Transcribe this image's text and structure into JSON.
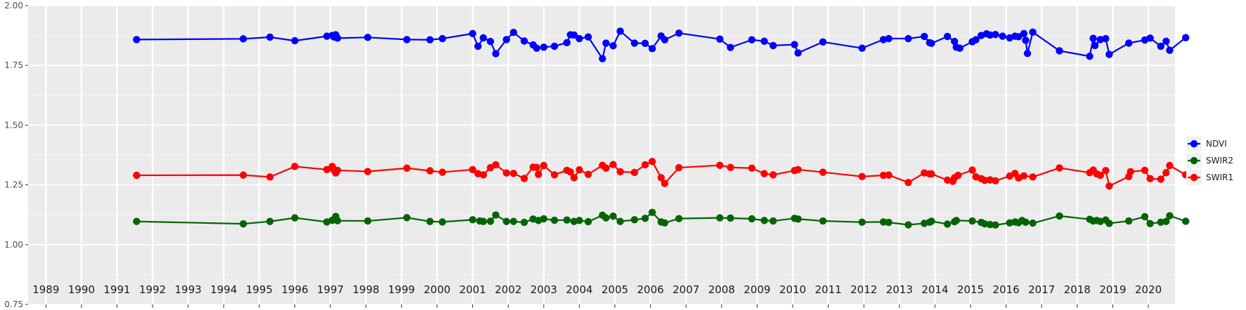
{
  "chart_data": {
    "type": "line",
    "title": "",
    "xlabel": "",
    "ylabel": "",
    "xlim": [
      1988.5,
      2020.75
    ],
    "ylim": [
      0.75,
      2.0
    ],
    "y_ticks": [
      "0.75",
      "1.00",
      "1.25",
      "1.50",
      "1.75",
      "2.00"
    ],
    "y_tick_values": [
      0.75,
      1.0,
      1.25,
      1.5,
      1.75,
      2.0
    ],
    "year_labels": [
      "1989",
      "1990",
      "1991",
      "1992",
      "1993",
      "1994",
      "1995",
      "1996",
      "1997",
      "1998",
      "1999",
      "2000",
      "2001",
      "2002",
      "2003",
      "2004",
      "2005",
      "2006",
      "2007",
      "2008",
      "2009",
      "2010",
      "2011",
      "2012",
      "2013",
      "2014",
      "2015",
      "2016",
      "2017",
      "2018",
      "2019",
      "2020"
    ],
    "year_label_values": [
      1989,
      1990,
      1991,
      1992,
      1993,
      1994,
      1995,
      1996,
      1997,
      1998,
      1999,
      2000,
      2001,
      2002,
      2003,
      2004,
      2005,
      2006,
      2007,
      2008,
      2009,
      2010,
      2011,
      2012,
      2013,
      2014,
      2015,
      2016,
      2017,
      2018,
      2019,
      2020
    ],
    "grid": true,
    "legend_position": "right",
    "background": "#ebebeb",
    "series": [
      {
        "name": "NDVI",
        "color": "#0000ff",
        "points": [
          [
            1991.55,
            1.858
          ],
          [
            1994.55,
            1.861
          ],
          [
            1995.3,
            1.868
          ],
          [
            1996.0,
            1.853
          ],
          [
            1996.9,
            1.872
          ],
          [
            1997.05,
            1.875
          ],
          [
            1997.1,
            1.869
          ],
          [
            1997.15,
            1.878
          ],
          [
            1997.2,
            1.864
          ],
          [
            1998.05,
            1.867
          ],
          [
            1999.15,
            1.858
          ],
          [
            1999.8,
            1.857
          ],
          [
            2000.15,
            1.862
          ],
          [
            2001.0,
            1.883
          ],
          [
            2001.15,
            1.83
          ],
          [
            2001.3,
            1.865
          ],
          [
            2001.5,
            1.85
          ],
          [
            2001.65,
            1.799
          ],
          [
            2001.95,
            1.858
          ],
          [
            2002.15,
            1.888
          ],
          [
            2002.45,
            1.852
          ],
          [
            2002.7,
            1.836
          ],
          [
            2002.8,
            1.822
          ],
          [
            2003.0,
            1.826
          ],
          [
            2003.3,
            1.83
          ],
          [
            2003.65,
            1.845
          ],
          [
            2003.75,
            1.878
          ],
          [
            2003.85,
            1.877
          ],
          [
            2004.0,
            1.862
          ],
          [
            2004.25,
            1.869
          ],
          [
            2004.65,
            1.778
          ],
          [
            2004.75,
            1.843
          ],
          [
            2004.95,
            1.832
          ],
          [
            2005.15,
            1.893
          ],
          [
            2005.55,
            1.843
          ],
          [
            2005.85,
            1.842
          ],
          [
            2006.05,
            1.82
          ],
          [
            2006.3,
            1.873
          ],
          [
            2006.4,
            1.857
          ],
          [
            2006.8,
            1.885
          ],
          [
            2007.95,
            1.86
          ],
          [
            2008.25,
            1.825
          ],
          [
            2008.85,
            1.857
          ],
          [
            2009.2,
            1.851
          ],
          [
            2009.45,
            1.833
          ],
          [
            2010.05,
            1.837
          ],
          [
            2010.15,
            1.802
          ],
          [
            2010.85,
            1.848
          ],
          [
            2011.95,
            1.822
          ],
          [
            2012.55,
            1.858
          ],
          [
            2012.7,
            1.862
          ],
          [
            2013.25,
            1.862
          ],
          [
            2013.7,
            1.871
          ],
          [
            2013.85,
            1.845
          ],
          [
            2013.9,
            1.842
          ],
          [
            2014.35,
            1.871
          ],
          [
            2014.55,
            1.85
          ],
          [
            2014.6,
            1.826
          ],
          [
            2014.7,
            1.822
          ],
          [
            2015.05,
            1.849
          ],
          [
            2015.15,
            1.857
          ],
          [
            2015.3,
            1.875
          ],
          [
            2015.45,
            1.882
          ],
          [
            2015.55,
            1.877
          ],
          [
            2015.7,
            1.879
          ],
          [
            2015.9,
            1.872
          ],
          [
            2016.1,
            1.865
          ],
          [
            2016.25,
            1.872
          ],
          [
            2016.35,
            1.87
          ],
          [
            2016.5,
            1.883
          ],
          [
            2016.55,
            1.855
          ],
          [
            2016.6,
            1.8
          ],
          [
            2016.75,
            1.889
          ],
          [
            2017.5,
            1.811
          ],
          [
            2018.35,
            1.788
          ],
          [
            2018.45,
            1.863
          ],
          [
            2018.5,
            1.833
          ],
          [
            2018.65,
            1.858
          ],
          [
            2018.8,
            1.862
          ],
          [
            2018.9,
            1.796
          ],
          [
            2019.45,
            1.843
          ],
          [
            2019.9,
            1.856
          ],
          [
            2020.05,
            1.864
          ],
          [
            2020.35,
            1.83
          ],
          [
            2020.5,
            1.851
          ],
          [
            2020.6,
            1.813
          ],
          [
            2021.05,
            1.866
          ]
        ]
      },
      {
        "name": "SWIR2",
        "color": "#006400",
        "points": [
          [
            1991.55,
            1.097
          ],
          [
            1994.55,
            1.087
          ],
          [
            1995.3,
            1.097
          ],
          [
            1996.0,
            1.112
          ],
          [
            1996.9,
            1.095
          ],
          [
            1997.05,
            1.102
          ],
          [
            1997.15,
            1.118
          ],
          [
            1997.2,
            1.1
          ],
          [
            1998.05,
            1.099
          ],
          [
            1999.15,
            1.113
          ],
          [
            1999.8,
            1.097
          ],
          [
            2000.15,
            1.095
          ],
          [
            2001.0,
            1.104
          ],
          [
            2001.2,
            1.099
          ],
          [
            2001.3,
            1.097
          ],
          [
            2001.5,
            1.098
          ],
          [
            2001.65,
            1.124
          ],
          [
            2001.95,
            1.097
          ],
          [
            2002.15,
            1.097
          ],
          [
            2002.45,
            1.093
          ],
          [
            2002.7,
            1.107
          ],
          [
            2002.85,
            1.101
          ],
          [
            2003.0,
            1.108
          ],
          [
            2003.3,
            1.102
          ],
          [
            2003.65,
            1.103
          ],
          [
            2003.85,
            1.097
          ],
          [
            2004.0,
            1.101
          ],
          [
            2004.25,
            1.096
          ],
          [
            2004.65,
            1.123
          ],
          [
            2004.75,
            1.112
          ],
          [
            2004.95,
            1.119
          ],
          [
            2005.15,
            1.097
          ],
          [
            2005.55,
            1.104
          ],
          [
            2005.85,
            1.11
          ],
          [
            2006.05,
            1.135
          ],
          [
            2006.3,
            1.095
          ],
          [
            2006.4,
            1.091
          ],
          [
            2006.8,
            1.109
          ],
          [
            2007.95,
            1.112
          ],
          [
            2008.25,
            1.111
          ],
          [
            2008.85,
            1.108
          ],
          [
            2009.2,
            1.101
          ],
          [
            2009.45,
            1.099
          ],
          [
            2010.05,
            1.11
          ],
          [
            2010.15,
            1.107
          ],
          [
            2010.85,
            1.099
          ],
          [
            2011.95,
            1.094
          ],
          [
            2012.55,
            1.095
          ],
          [
            2012.7,
            1.093
          ],
          [
            2013.25,
            1.083
          ],
          [
            2013.7,
            1.089
          ],
          [
            2013.85,
            1.094
          ],
          [
            2013.9,
            1.098
          ],
          [
            2014.35,
            1.086
          ],
          [
            2014.55,
            1.096
          ],
          [
            2014.6,
            1.101
          ],
          [
            2015.05,
            1.099
          ],
          [
            2015.3,
            1.093
          ],
          [
            2015.4,
            1.087
          ],
          [
            2015.55,
            1.084
          ],
          [
            2015.7,
            1.082
          ],
          [
            2016.1,
            1.091
          ],
          [
            2016.25,
            1.095
          ],
          [
            2016.35,
            1.092
          ],
          [
            2016.45,
            1.101
          ],
          [
            2016.55,
            1.094
          ],
          [
            2016.75,
            1.09
          ],
          [
            2017.5,
            1.12
          ],
          [
            2018.35,
            1.106
          ],
          [
            2018.45,
            1.099
          ],
          [
            2018.55,
            1.101
          ],
          [
            2018.65,
            1.097
          ],
          [
            2018.8,
            1.103
          ],
          [
            2018.9,
            1.089
          ],
          [
            2019.45,
            1.099
          ],
          [
            2019.9,
            1.117
          ],
          [
            2020.05,
            1.088
          ],
          [
            2020.35,
            1.094
          ],
          [
            2020.5,
            1.097
          ],
          [
            2020.6,
            1.121
          ],
          [
            2021.05,
            1.098
          ]
        ]
      },
      {
        "name": "SWIR1",
        "color": "#ff0000",
        "points": [
          [
            1991.55,
            1.29
          ],
          [
            1994.55,
            1.291
          ],
          [
            1995.3,
            1.283
          ],
          [
            1996.0,
            1.327
          ],
          [
            1996.9,
            1.314
          ],
          [
            1997.05,
            1.327
          ],
          [
            1997.1,
            1.312
          ],
          [
            1997.15,
            1.3
          ],
          [
            1997.2,
            1.311
          ],
          [
            1998.05,
            1.306
          ],
          [
            1999.15,
            1.32
          ],
          [
            1999.8,
            1.309
          ],
          [
            2000.15,
            1.303
          ],
          [
            2001.0,
            1.314
          ],
          [
            2001.15,
            1.297
          ],
          [
            2001.3,
            1.292
          ],
          [
            2001.5,
            1.322
          ],
          [
            2001.65,
            1.334
          ],
          [
            2001.95,
            1.3
          ],
          [
            2002.15,
            1.298
          ],
          [
            2002.45,
            1.277
          ],
          [
            2002.7,
            1.324
          ],
          [
            2002.8,
            1.323
          ],
          [
            2002.85,
            1.294
          ],
          [
            2003.0,
            1.331
          ],
          [
            2003.3,
            1.292
          ],
          [
            2003.65,
            1.311
          ],
          [
            2003.75,
            1.304
          ],
          [
            2003.85,
            1.28
          ],
          [
            2004.0,
            1.313
          ],
          [
            2004.25,
            1.294
          ],
          [
            2004.65,
            1.332
          ],
          [
            2004.75,
            1.32
          ],
          [
            2004.95,
            1.335
          ],
          [
            2005.15,
            1.305
          ],
          [
            2005.55,
            1.302
          ],
          [
            2005.85,
            1.334
          ],
          [
            2006.05,
            1.348
          ],
          [
            2006.3,
            1.28
          ],
          [
            2006.4,
            1.256
          ],
          [
            2006.8,
            1.322
          ],
          [
            2007.95,
            1.332
          ],
          [
            2008.25,
            1.323
          ],
          [
            2008.85,
            1.32
          ],
          [
            2009.2,
            1.297
          ],
          [
            2009.45,
            1.292
          ],
          [
            2010.05,
            1.31
          ],
          [
            2010.15,
            1.314
          ],
          [
            2010.85,
            1.303
          ],
          [
            2011.95,
            1.285
          ],
          [
            2012.55,
            1.29
          ],
          [
            2012.7,
            1.291
          ],
          [
            2013.25,
            1.26
          ],
          [
            2013.7,
            1.3
          ],
          [
            2013.85,
            1.296
          ],
          [
            2013.9,
            1.296
          ],
          [
            2014.35,
            1.27
          ],
          [
            2014.5,
            1.265
          ],
          [
            2014.55,
            1.28
          ],
          [
            2014.65,
            1.29
          ],
          [
            2015.05,
            1.312
          ],
          [
            2015.15,
            1.284
          ],
          [
            2015.3,
            1.276
          ],
          [
            2015.4,
            1.269
          ],
          [
            2015.55,
            1.271
          ],
          [
            2015.7,
            1.267
          ],
          [
            2016.1,
            1.287
          ],
          [
            2016.25,
            1.298
          ],
          [
            2016.35,
            1.279
          ],
          [
            2016.5,
            1.288
          ],
          [
            2016.75,
            1.283
          ],
          [
            2017.5,
            1.321
          ],
          [
            2018.35,
            1.301
          ],
          [
            2018.45,
            1.312
          ],
          [
            2018.55,
            1.296
          ],
          [
            2018.65,
            1.29
          ],
          [
            2018.8,
            1.31
          ],
          [
            2018.9,
            1.245
          ],
          [
            2019.45,
            1.285
          ],
          [
            2019.5,
            1.305
          ],
          [
            2019.9,
            1.311
          ],
          [
            2020.05,
            1.276
          ],
          [
            2020.35,
            1.274
          ],
          [
            2020.5,
            1.301
          ],
          [
            2020.6,
            1.331
          ],
          [
            2021.05,
            1.292
          ]
        ]
      }
    ],
    "legend": [
      {
        "label": "NDVI",
        "color": "#0000ff"
      },
      {
        "label": "SWIR2",
        "color": "#006400"
      },
      {
        "label": "SWIR1",
        "color": "#ff0000"
      }
    ]
  }
}
